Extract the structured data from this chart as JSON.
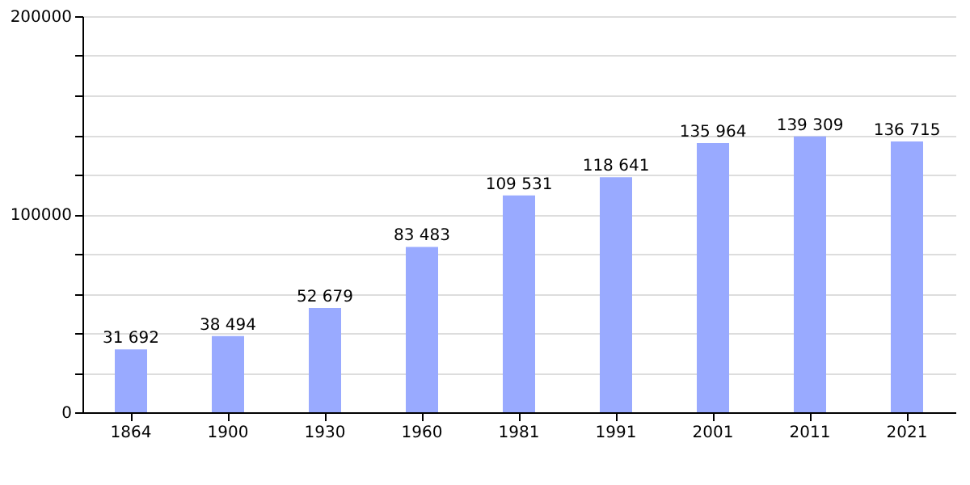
{
  "chart_data": {
    "type": "bar",
    "categories": [
      "1864",
      "1900",
      "1930",
      "1960",
      "1981",
      "1991",
      "2001",
      "2011",
      "2021"
    ],
    "values": [
      31692,
      38494,
      52679,
      83483,
      109531,
      118641,
      135964,
      139309,
      136715
    ],
    "value_labels": [
      "31 692",
      "38 494",
      "52 679",
      "83 483",
      "109 531",
      "118 641",
      "135 964",
      "139 309",
      "136 715"
    ],
    "color": "#99aaff",
    "ylim": [
      0,
      200000
    ],
    "yticks": [
      0,
      {
        "value": 20000,
        "label": null
      },
      {
        "value": 40000,
        "label": null
      },
      {
        "value": 60000,
        "label": null
      },
      {
        "value": 80000,
        "label": null
      },
      100000,
      {
        "value": 120000,
        "label": null
      },
      {
        "value": 140000,
        "label": null
      },
      {
        "value": 160000,
        "label": null
      },
      {
        "value": 180000,
        "label": null
      },
      200000
    ],
    "grid": "y"
  }
}
